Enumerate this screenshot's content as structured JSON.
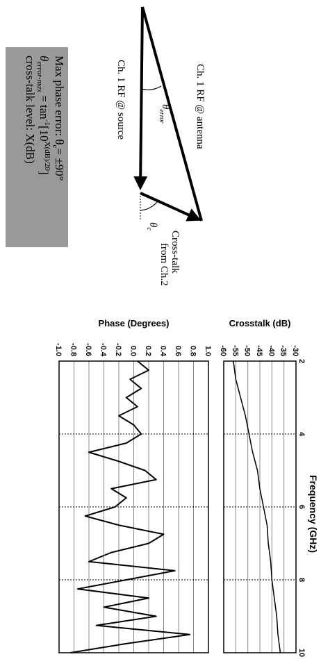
{
  "diagram": {
    "antenna_label": "Ch. 1 RF @ antenna",
    "source_label": "Ch. 1 RF @ source",
    "theta_error": [
      "θ",
      "error"
    ],
    "crosstalk_label": [
      "Cross-talk",
      "from Ch.2"
    ],
    "theta_c": [
      "θ",
      "c"
    ],
    "box": {
      "line1": [
        "Max phase error: θ",
        "c",
        "= ±90°"
      ],
      "line2": [
        "θ",
        "error-max",
        " = tan",
        "-1",
        "[10",
        "X(dB)/20",
        "]"
      ],
      "line3": "cross-talk level: X(dB)"
    }
  },
  "chart_data": [
    {
      "type": "line",
      "ylabel": "Crosstalk (dB)",
      "xlabel": "Frequency (GHz)",
      "x": [
        2,
        2.5,
        3,
        3.5,
        4,
        4.5,
        5,
        5.5,
        6,
        6.5,
        7,
        7.5,
        8,
        8.5,
        9,
        9.5,
        10
      ],
      "series": [
        {
          "color": "#000000",
          "values": [
            -56,
            -55,
            -53,
            -51,
            -49.5,
            -48,
            -46,
            -45,
            -43.5,
            -42,
            -41.5,
            -40.5,
            -40,
            -39,
            -38,
            -37.5,
            -36.5
          ]
        }
      ],
      "xlim": [
        2,
        10
      ],
      "xticks": [
        2,
        4,
        6,
        8,
        10
      ],
      "ylim": [
        -60,
        -30
      ],
      "yticks": [
        -60,
        -55,
        -50,
        -45,
        -40,
        -35,
        -30
      ],
      "grid": true
    },
    {
      "type": "line",
      "ylabel": "Phase (Degrees)",
      "x": [
        2,
        2.25,
        2.5,
        2.75,
        3,
        3.25,
        3.5,
        3.75,
        4,
        4.25,
        4.5,
        4.75,
        5,
        5.25,
        5.5,
        5.75,
        6,
        6.25,
        6.5,
        6.75,
        7,
        7.25,
        7.5,
        7.75,
        8,
        8.25,
        8.5,
        8.75,
        9,
        9.25,
        9.5,
        9.75,
        10
      ],
      "series": [
        {
          "color": "#000000",
          "values": [
            0.05,
            0.2,
            -0.05,
            0.1,
            -0.1,
            0.05,
            -0.2,
            0.0,
            0.1,
            -0.1,
            -0.6,
            -0.2,
            0.15,
            0.3,
            -0.3,
            -0.1,
            -0.25,
            -0.65,
            -0.2,
            0.4,
            0.2,
            -0.3,
            -0.6,
            0.55,
            -0.1,
            -0.75,
            0.2,
            -0.4,
            0.3,
            -0.5,
            0.75,
            -0.1,
            -0.85
          ]
        }
      ],
      "xlim": [
        2,
        10
      ],
      "xticks": [
        2,
        4,
        6,
        8,
        10
      ],
      "ylim": [
        -1,
        1
      ],
      "yticks": [
        {
          "value": -1,
          "label": "-1.0"
        },
        -0.8,
        -0.6,
        -0.4,
        -0.2,
        {
          "value": 0,
          "label": "0.0"
        },
        0.2,
        0.4,
        0.6,
        0.8,
        {
          "value": 1,
          "label": "1.0"
        }
      ],
      "grid": true
    }
  ]
}
